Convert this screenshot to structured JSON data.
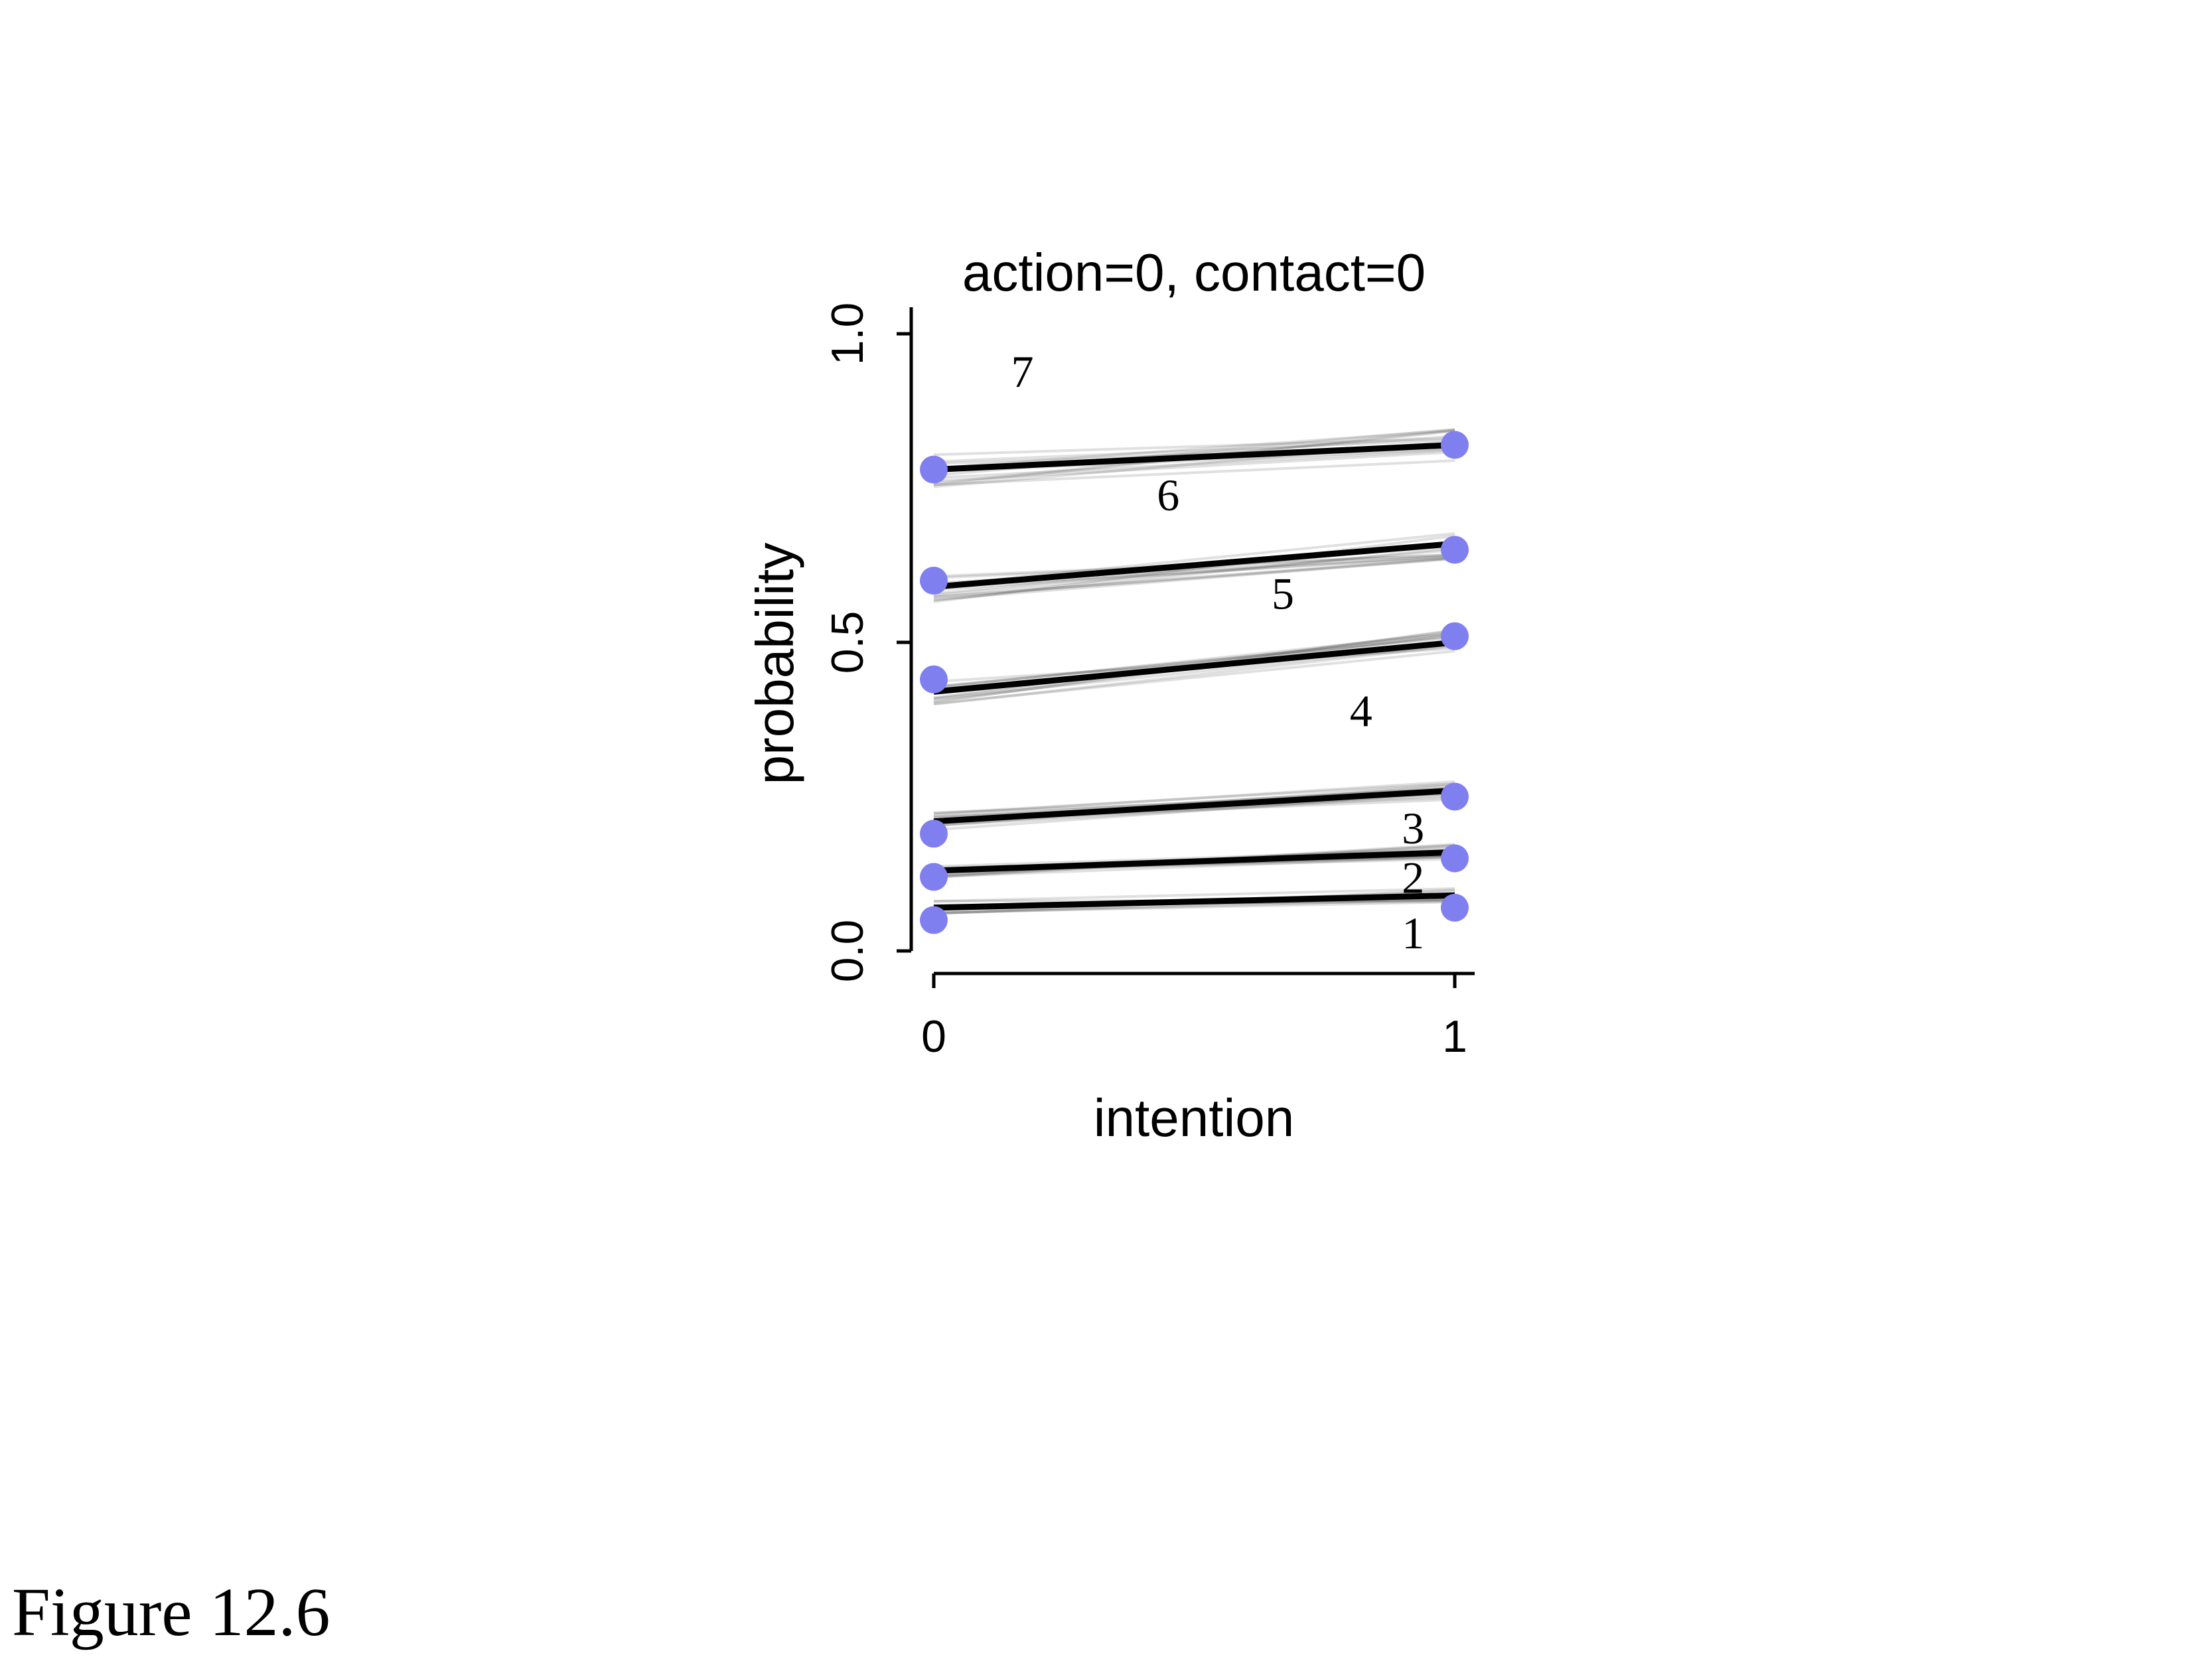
{
  "figure_caption": "Figure 12.6",
  "chart_data": {
    "type": "line",
    "title": "action=0, contact=0",
    "xlabel": "intention",
    "ylabel": "probability",
    "xlim": [
      0,
      1
    ],
    "ylim": [
      0,
      1
    ],
    "x_ticks": [
      0,
      1
    ],
    "x_tick_labels": [
      "0",
      "1"
    ],
    "y_ticks": [
      0,
      0.5,
      1
    ],
    "y_tick_labels": [
      "0.0",
      "0.5",
      "1.0"
    ],
    "x": [
      0,
      1
    ],
    "series": [
      {
        "name": "1",
        "values": [
          0.07,
          0.09
        ]
      },
      {
        "name": "2",
        "values": [
          0.13,
          0.16
        ]
      },
      {
        "name": "3",
        "values": [
          0.21,
          0.26
        ]
      },
      {
        "name": "4",
        "values": [
          0.42,
          0.5
        ]
      },
      {
        "name": "5",
        "values": [
          0.59,
          0.66
        ]
      },
      {
        "name": "6",
        "values": [
          0.78,
          0.82
        ]
      }
    ],
    "observed_points": {
      "x": [
        0,
        0,
        0,
        0,
        0,
        0,
        1,
        1,
        1,
        1,
        1,
        1
      ],
      "y": [
        0.05,
        0.12,
        0.19,
        0.44,
        0.6,
        0.78,
        0.07,
        0.15,
        0.25,
        0.51,
        0.65,
        0.82
      ]
    },
    "category_labels": [
      {
        "text": "7",
        "x": 0.17,
        "y": 0.94
      },
      {
        "text": "6",
        "x": 0.45,
        "y": 0.74
      },
      {
        "text": "5",
        "x": 0.67,
        "y": 0.58
      },
      {
        "text": "4",
        "x": 0.82,
        "y": 0.39
      },
      {
        "text": "3",
        "x": 0.92,
        "y": 0.2
      },
      {
        "text": "2",
        "x": 0.92,
        "y": 0.12
      },
      {
        "text": "1",
        "x": 0.92,
        "y": 0.03
      }
    ],
    "colors": {
      "points": "#7f7ff0",
      "lines": "#000000"
    }
  }
}
